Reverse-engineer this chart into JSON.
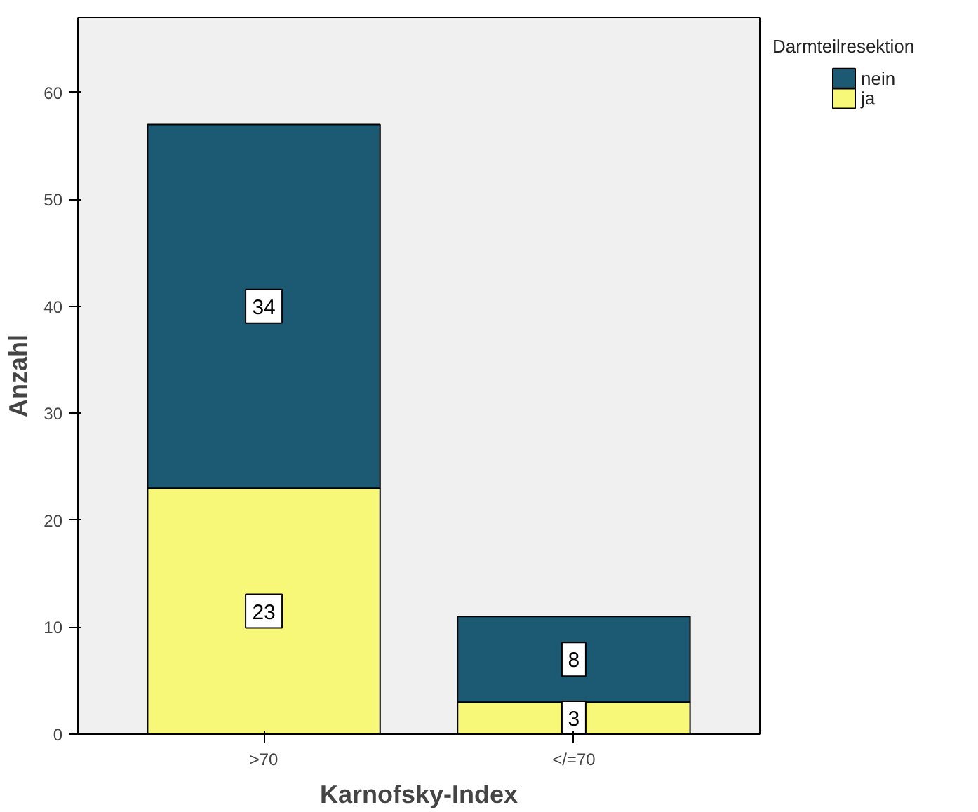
{
  "chart_data": {
    "type": "bar",
    "stacked": true,
    "xlabel": "Karnofsky-Index",
    "ylabel": "Anzahl",
    "legend_title": "Darmteilresektion",
    "categories": [
      ">70",
      "</=70"
    ],
    "series": [
      {
        "name": "ja",
        "color": "#f8f878",
        "values": [
          23,
          3
        ]
      },
      {
        "name": "nein",
        "color": "#1c5a74",
        "values": [
          34,
          8
        ]
      }
    ],
    "ylim": [
      0,
      67
    ],
    "yticks": [
      0,
      10,
      20,
      30,
      40,
      50,
      60
    ],
    "grid": false,
    "legend": "top right",
    "data_labels": true
  }
}
